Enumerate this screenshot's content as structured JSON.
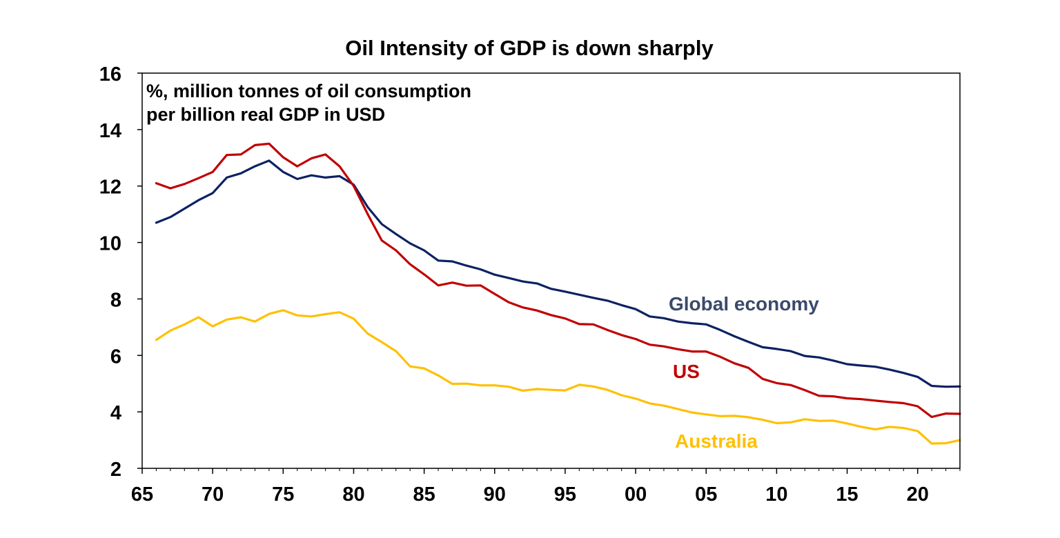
{
  "chart_data": {
    "type": "line",
    "title": "Oil Intensity of GDP is down sharply",
    "ylabel": "%, million tonnes of oil consumption per billion real GDP in USD",
    "ylabel_lines": [
      "%, million tonnes of oil consumption",
      "per billion real GDP in USD"
    ],
    "xlabel": "",
    "xlim": [
      1965,
      2023
    ],
    "ylim": [
      2,
      16
    ],
    "y_ticks": [
      2,
      4,
      6,
      8,
      10,
      12,
      14,
      16
    ],
    "x_ticks": [
      {
        "year": 1965,
        "label": "65"
      },
      {
        "year": 1970,
        "label": "70"
      },
      {
        "year": 1975,
        "label": "75"
      },
      {
        "year": 1980,
        "label": "80"
      },
      {
        "year": 1985,
        "label": "85"
      },
      {
        "year": 1990,
        "label": "90"
      },
      {
        "year": 1995,
        "label": "95"
      },
      {
        "year": 2000,
        "label": "00"
      },
      {
        "year": 2005,
        "label": "05"
      },
      {
        "year": 2010,
        "label": "10"
      },
      {
        "year": 2015,
        "label": "15"
      },
      {
        "year": 2020,
        "label": "20"
      }
    ],
    "grid": false,
    "legend": "inline labels next to series",
    "x": [
      1966,
      1967,
      1968,
      1969,
      1970,
      1971,
      1972,
      1973,
      1974,
      1975,
      1976,
      1977,
      1978,
      1979,
      1980,
      1981,
      1982,
      1983,
      1984,
      1985,
      1986,
      1987,
      1988,
      1989,
      1990,
      1991,
      1992,
      1993,
      1994,
      1995,
      1996,
      1997,
      1998,
      1999,
      2000,
      2001,
      2002,
      2003,
      2004,
      2005,
      2006,
      2007,
      2008,
      2009,
      2010,
      2011,
      2012,
      2013,
      2014,
      2015,
      2016,
      2017,
      2018,
      2019,
      2020,
      2021,
      2022,
      2023
    ],
    "series": [
      {
        "name": "Global economy",
        "color": "#0c2163",
        "label_color": "#3b4a6b",
        "values": [
          10.7,
          10.9,
          11.2,
          11.5,
          11.75,
          12.3,
          12.45,
          12.7,
          12.9,
          12.5,
          12.25,
          12.38,
          12.3,
          12.35,
          12.05,
          11.25,
          10.65,
          10.3,
          9.97,
          9.72,
          9.36,
          9.33,
          9.18,
          9.05,
          8.86,
          8.74,
          8.62,
          8.55,
          8.36,
          8.26,
          8.15,
          8.04,
          7.94,
          7.78,
          7.64,
          7.38,
          7.32,
          7.2,
          7.14,
          7.1,
          6.9,
          6.68,
          6.48,
          6.29,
          6.23,
          6.15,
          5.98,
          5.93,
          5.82,
          5.69,
          5.64,
          5.6,
          5.5,
          5.38,
          5.24,
          4.92,
          4.89,
          4.9
        ]
      },
      {
        "name": "US",
        "color": "#c00000",
        "label_color": "#c00000",
        "values": [
          12.1,
          11.92,
          12.07,
          12.28,
          12.5,
          13.1,
          13.12,
          13.45,
          13.5,
          13.02,
          12.7,
          12.98,
          13.12,
          12.7,
          12.0,
          11.0,
          10.07,
          9.72,
          9.23,
          8.87,
          8.48,
          8.58,
          8.47,
          8.48,
          8.18,
          7.88,
          7.7,
          7.59,
          7.43,
          7.31,
          7.11,
          7.1,
          6.9,
          6.72,
          6.58,
          6.38,
          6.32,
          6.22,
          6.14,
          6.14,
          5.95,
          5.72,
          5.56,
          5.17,
          5.02,
          4.95,
          4.77,
          4.57,
          4.55,
          4.48,
          4.45,
          4.4,
          4.35,
          4.31,
          4.2,
          3.82,
          3.94,
          3.93
        ]
      },
      {
        "name": "Australia",
        "color": "#ffc000",
        "label_color": "#ffc000",
        "values": [
          6.55,
          6.88,
          7.1,
          7.35,
          7.03,
          7.27,
          7.35,
          7.2,
          7.47,
          7.6,
          7.42,
          7.38,
          7.46,
          7.53,
          7.3,
          6.77,
          6.47,
          6.15,
          5.61,
          5.54,
          5.29,
          4.99,
          5.0,
          4.94,
          4.94,
          4.89,
          4.75,
          4.81,
          4.78,
          4.76,
          4.96,
          4.9,
          4.78,
          4.59,
          4.47,
          4.3,
          4.22,
          4.1,
          3.98,
          3.91,
          3.85,
          3.86,
          3.81,
          3.72,
          3.6,
          3.63,
          3.74,
          3.68,
          3.69,
          3.59,
          3.47,
          3.38,
          3.47,
          3.43,
          3.32,
          2.88,
          2.89,
          3.0
        ]
      }
    ]
  }
}
